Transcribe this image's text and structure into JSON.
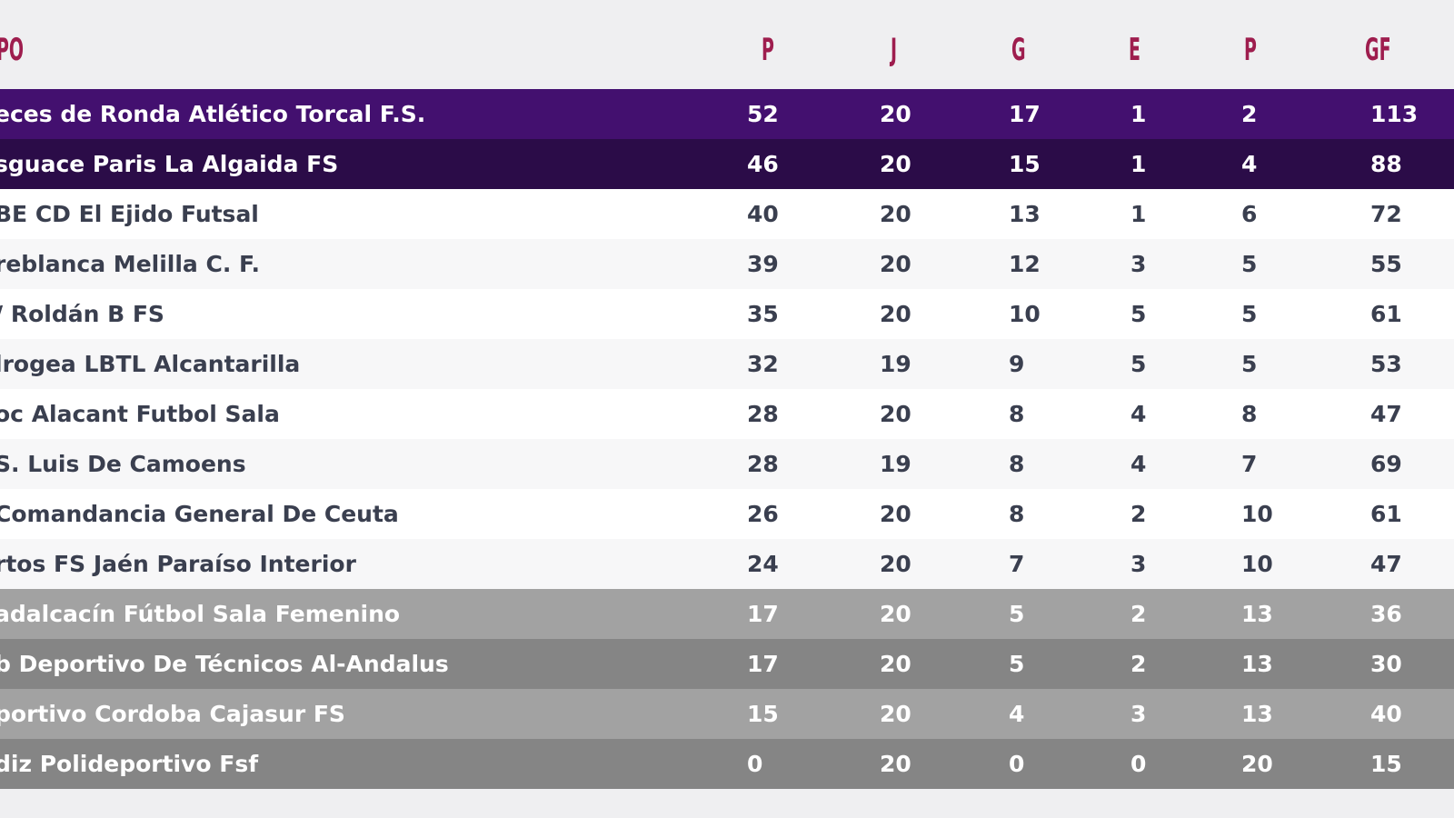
{
  "columns": {
    "team": "PO",
    "points": "P",
    "played": "J",
    "won": "G",
    "drawn": "E",
    "lost": "P",
    "goals_for": "GF"
  },
  "colors": {
    "header_text": "#9e1d4e",
    "promotion_row_1": "#43106f",
    "promotion_row_2": "#2b0c48",
    "relegation_row_light": "#a2a2a2",
    "relegation_row_dark": "#858585"
  },
  "rows": [
    {
      "team": "eces de Ronda Atlético Torcal F.S.",
      "points": "52",
      "played": "20",
      "won": "17",
      "drawn": "1",
      "lost": "2",
      "goals_for": "113"
    },
    {
      "team": "sguace Paris La Algaida FS",
      "points": "46",
      "played": "20",
      "won": "15",
      "drawn": "1",
      "lost": "4",
      "goals_for": "88"
    },
    {
      "team": "BE CD El Ejido Futsal",
      "points": "40",
      "played": "20",
      "won": "13",
      "drawn": "1",
      "lost": "6",
      "goals_for": "72"
    },
    {
      "team": "reblanca Melilla C. F.",
      "points": "39",
      "played": "20",
      "won": "12",
      "drawn": "3",
      "lost": "5",
      "goals_for": "55"
    },
    {
      "team": "/ Roldán B FS",
      "points": "35",
      "played": "20",
      "won": "10",
      "drawn": "5",
      "lost": "5",
      "goals_for": "61"
    },
    {
      "team": "lrogea LBTL Alcantarilla",
      "points": "32",
      "played": "19",
      "won": "9",
      "drawn": "5",
      "lost": "5",
      "goals_for": "53"
    },
    {
      "team": "oc Alacant Futbol Sala",
      "points": "28",
      "played": "20",
      "won": "8",
      "drawn": "4",
      "lost": "8",
      "goals_for": "47"
    },
    {
      "team": "S. Luis De Camoens",
      "points": "28",
      "played": "19",
      "won": "8",
      "drawn": "4",
      "lost": "7",
      "goals_for": "69"
    },
    {
      "team": "Comandancia General De Ceuta",
      "points": "26",
      "played": "20",
      "won": "8",
      "drawn": "2",
      "lost": "10",
      "goals_for": "61"
    },
    {
      "team": "rtos FS Jaén Paraíso Interior",
      "points": "24",
      "played": "20",
      "won": "7",
      "drawn": "3",
      "lost": "10",
      "goals_for": "47"
    },
    {
      "team": "adalcacín Fútbol Sala Femenino",
      "points": "17",
      "played": "20",
      "won": "5",
      "drawn": "2",
      "lost": "13",
      "goals_for": "36"
    },
    {
      "team": "b Deportivo De Técnicos Al-Andalus",
      "points": "17",
      "played": "20",
      "won": "5",
      "drawn": "2",
      "lost": "13",
      "goals_for": "30"
    },
    {
      "team": "portivo Cordoba Cajasur FS",
      "points": "15",
      "played": "20",
      "won": "4",
      "drawn": "3",
      "lost": "13",
      "goals_for": "40"
    },
    {
      "team": "diz Polideportivo Fsf",
      "points": "0",
      "played": "20",
      "won": "0",
      "drawn": "0",
      "lost": "20",
      "goals_for": "15"
    }
  ]
}
